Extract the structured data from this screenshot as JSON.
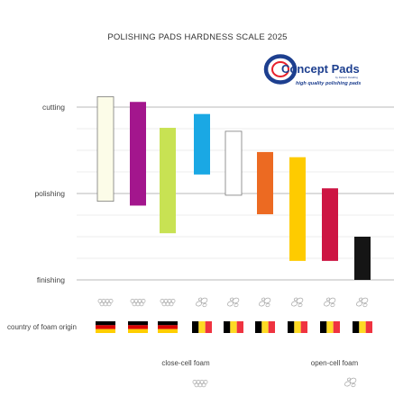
{
  "chart_data": {
    "type": "bar",
    "title": "POLISHING PADS HARDNESS SCALE 2025",
    "y_scale_labels": [
      "cutting",
      "polishing",
      "finishing"
    ],
    "y_scale_values": {
      "cutting": 100,
      "polishing": 50,
      "finishing": 0
    },
    "ylim": [
      0,
      100
    ],
    "grid": true,
    "bars": [
      {
        "low": 45.5,
        "high": 106,
        "color": "#fcfce8",
        "foam": "closed",
        "origin": "germany"
      },
      {
        "low": 43,
        "high": 103,
        "color": "#a3168d",
        "foam": "closed",
        "origin": "germany"
      },
      {
        "low": 27,
        "high": 88,
        "color": "#c8e253",
        "foam": "closed",
        "origin": "germany"
      },
      {
        "low": 61,
        "high": 96,
        "color": "#1aa8e4",
        "foam": "open",
        "origin": "belgium"
      },
      {
        "low": 49,
        "high": 86,
        "color": "#ffffff",
        "foam": "open",
        "origin": "belgium"
      },
      {
        "low": 38,
        "high": 74,
        "color": "#ec6a22",
        "foam": "open",
        "origin": "belgium"
      },
      {
        "low": 11,
        "high": 71,
        "color": "#fecb00",
        "foam": "open",
        "origin": "belgium"
      },
      {
        "low": 11,
        "high": 53,
        "color": "#cd1543",
        "foam": "open",
        "origin": "belgium"
      },
      {
        "low": 0,
        "high": 25,
        "color": "#151515",
        "foam": "open",
        "origin": "belgium"
      }
    ],
    "row_label": "country of foam origin",
    "legend": [
      {
        "label": "close-cell foam",
        "icon": "closed-cell-icon"
      },
      {
        "label": "open-cell foam",
        "icon": "open-cell-icon"
      }
    ]
  },
  "brand": {
    "name": "Concept Pads",
    "byline": "by Detlech Detailing",
    "tagline": "high quality polishing pads",
    "colors": {
      "primary": "#1d3f8f",
      "accent": "#e8202a"
    }
  },
  "flags": {
    "germany": [
      "#000000",
      "#dd0000",
      "#ffce00"
    ],
    "belgium": [
      "#000000",
      "#fdda24",
      "#ef3340"
    ]
  },
  "colors": {
    "grid": "#dcdcdc",
    "axis_line": "#b8b8b8",
    "icon_stroke": "#9a9a9a"
  }
}
